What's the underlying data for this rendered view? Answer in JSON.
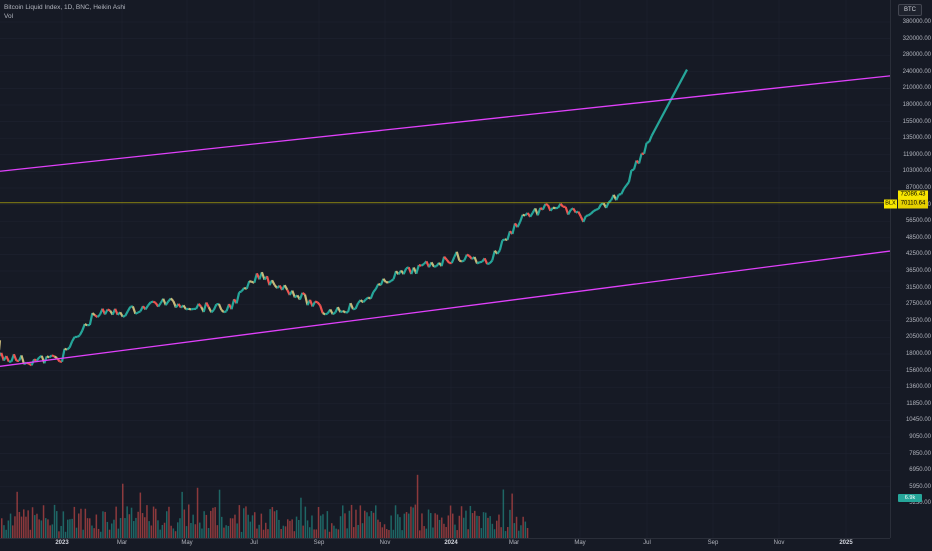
{
  "legend": {
    "title": "Bitcoin Liquid Index, 1D, BNC, Heikin Ashi",
    "vol": "Vol"
  },
  "currency_badge": "BTC",
  "price_tags": {
    "last_price": "72086.43",
    "bl_label": "BLX",
    "bl_price": "70110.64",
    "vol_value": "6.9k"
  },
  "price_axis": [
    "380000.00",
    "320000.00",
    "280000.00",
    "240000.00",
    "210000.00",
    "180000.00",
    "155000.00",
    "135000.00",
    "119000.00",
    "103000.00",
    "87000.00",
    "64500.00",
    "56500.00",
    "48500.00",
    "42500.00",
    "36500.00",
    "31500.00",
    "27500.00",
    "23500.00",
    "20500.00",
    "18000.00",
    "15600.00",
    "13600.00",
    "11850.00",
    "10450.00",
    "9050.00",
    "7850.00",
    "6950.00",
    "5950.00",
    "5230.00"
  ],
  "time_axis": [
    {
      "label": "2023",
      "bold": true
    },
    {
      "label": "Mar",
      "bold": false
    },
    {
      "label": "May",
      "bold": false
    },
    {
      "label": "Jul",
      "bold": false
    },
    {
      "label": "Sep",
      "bold": false
    },
    {
      "label": "Nov",
      "bold": false
    },
    {
      "label": "2024",
      "bold": true
    },
    {
      "label": "Mar",
      "bold": false
    },
    {
      "label": "May",
      "bold": false
    },
    {
      "label": "Jul",
      "bold": false
    },
    {
      "label": "Sep",
      "bold": false
    },
    {
      "label": "Nov",
      "bold": false
    },
    {
      "label": "2025",
      "bold": true
    }
  ],
  "colors": {
    "up": "#26a69a",
    "down": "#ef5350",
    "neutral": "#c8b97a",
    "channel": "#e040fb",
    "price_line": "#f7e600",
    "grid": "#1f2330"
  },
  "chart_data": {
    "type": "line",
    "scale": "log",
    "series": [
      {
        "x": [
          "2022-11",
          "2022-12",
          "2023-01",
          "2023-02",
          "2023-03",
          "2023-04",
          "2023-05",
          "2023-06",
          "2023-07",
          "2023-08",
          "2023-09",
          "2023-10",
          "2023-11",
          "2023-12",
          "2024-01",
          "2024-02",
          "2024-03",
          "2024-04",
          "2024-05",
          "2024-06",
          "2024-07"
        ],
        "values": [
          18000,
          16800,
          17500,
          26000,
          26500,
          29000,
          28000,
          27000,
          37000,
          32000,
          26500,
          28000,
          36500,
          40000,
          44000,
          42000,
          64000,
          70000,
          62000,
          80000,
          140000
        ]
      }
    ],
    "channel": {
      "upper": {
        "x": [
          "2022-11",
          "2025-02"
        ],
        "values": [
          96000,
          230000
        ]
      },
      "lower": {
        "x": [
          "2022-11",
          "2025-02"
        ],
        "values": [
          16000,
          46000
        ]
      }
    }
  }
}
